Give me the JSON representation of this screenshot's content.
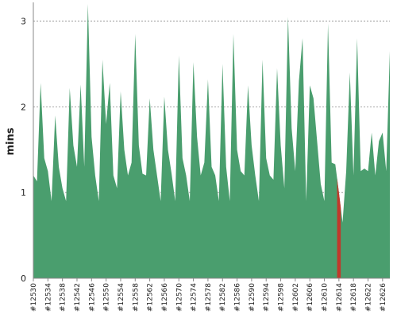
{
  "chart_data": {
    "type": "area",
    "title": "",
    "xlabel": "",
    "ylabel": "mins",
    "ylim": [
      0,
      3.2
    ],
    "yticks": [
      "0",
      "1",
      "2",
      "3"
    ],
    "grid": true,
    "colors": {
      "pass": "#4a9e6e",
      "fail": "#c0392b",
      "grid": "#8a8a8a",
      "axis": "#888888"
    },
    "x_tick_labels": [
      "#12530",
      "#12534",
      "#12538",
      "#12542",
      "#12546",
      "#12550",
      "#12554",
      "#12558",
      "#12562",
      "#12566",
      "#12570",
      "#12574",
      "#12578",
      "#12582",
      "#12586",
      "#12590",
      "#12594",
      "#12598",
      "#12602",
      "#12606",
      "#12610",
      "#12614",
      "#12618",
      "#12622",
      "#12626"
    ],
    "series": [
      {
        "builds": [
          12530,
          12531,
          12532,
          12533,
          12534,
          12535,
          12536,
          12537,
          12538,
          12539,
          12540,
          12541,
          12542,
          12543,
          12544,
          12545,
          12546,
          12547,
          12548,
          12549,
          12550,
          12551,
          12552,
          12553,
          12554,
          12555,
          12556,
          12557,
          12558,
          12559,
          12560,
          12561,
          12562,
          12563,
          12564,
          12565,
          12566,
          12567,
          12568,
          12569,
          12570,
          12571,
          12572,
          12573,
          12574,
          12575,
          12576,
          12577,
          12578,
          12579,
          12580,
          12581,
          12582,
          12583,
          12584,
          12585,
          12586,
          12587,
          12588,
          12589,
          12590,
          12591,
          12592,
          12593,
          12594,
          12595,
          12596,
          12597,
          12598,
          12599,
          12600,
          12601,
          12602,
          12603,
          12604,
          12605,
          12606,
          12607,
          12608,
          12609,
          12610,
          12611,
          12612,
          12613,
          12614,
          12615,
          12616,
          12617,
          12618,
          12619,
          12620,
          12621,
          12622,
          12623,
          12624,
          12625,
          12626,
          12627,
          12628
        ],
        "values": [
          1.2,
          1.13,
          2.28,
          1.4,
          1.25,
          0.9,
          1.9,
          1.3,
          1.05,
          0.9,
          2.22,
          1.55,
          1.3,
          2.26,
          1.3,
          3.2,
          1.65,
          1.2,
          0.9,
          2.55,
          1.8,
          2.28,
          1.2,
          1.05,
          2.18,
          1.5,
          1.2,
          1.35,
          2.85,
          1.55,
          1.22,
          1.2,
          2.1,
          1.5,
          1.2,
          0.9,
          2.12,
          1.5,
          1.22,
          0.9,
          2.6,
          1.4,
          1.2,
          0.9,
          2.52,
          1.65,
          1.2,
          1.35,
          2.32,
          1.3,
          1.2,
          0.9,
          2.5,
          1.3,
          0.9,
          2.85,
          1.5,
          1.25,
          1.2,
          2.25,
          1.55,
          1.2,
          0.9,
          2.55,
          1.4,
          1.2,
          1.15,
          2.45,
          1.55,
          1.05,
          3.05,
          1.75,
          1.25,
          2.3,
          2.8,
          0.9,
          2.25,
          2.1,
          1.6,
          1.1,
          0.9,
          2.97,
          1.35,
          1.33,
          1.0,
          0.65,
          1.25,
          2.4,
          1.2,
          2.8,
          1.25,
          1.28,
          1.25,
          1.7,
          1.2,
          1.6,
          1.7,
          1.25,
          2.65
        ],
        "failed_builds": [
          12614
        ]
      }
    ]
  }
}
